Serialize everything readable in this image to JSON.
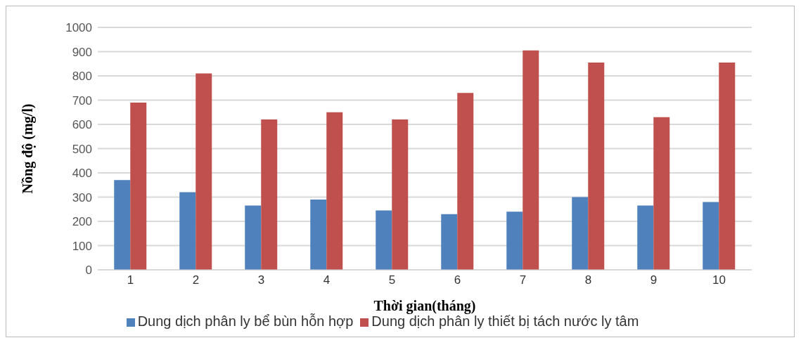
{
  "chart_data": {
    "type": "bar",
    "xlabel": "Thời gian(tháng)",
    "ylabel": "Nồng độ (mg/l)",
    "categories": [
      "1",
      "2",
      "3",
      "4",
      "5",
      "6",
      "7",
      "8",
      "9",
      "10"
    ],
    "series": [
      {
        "name": "Dung dịch phân ly bể bùn hỗn hợp",
        "color": "#4f81bd",
        "values": [
          370,
          320,
          265,
          290,
          245,
          230,
          240,
          300,
          265,
          280
        ]
      },
      {
        "name": "Dung dịch phân ly thiết bị tách nước ly tâm",
        "color": "#c0504d",
        "values": [
          690,
          810,
          620,
          650,
          620,
          730,
          905,
          855,
          630,
          855
        ]
      }
    ],
    "ylim": [
      0,
      1000
    ],
    "yticks": [
      0,
      100,
      200,
      300,
      400,
      500,
      600,
      700,
      800,
      900,
      1000
    ],
    "grid": "y",
    "legend": "bottom"
  }
}
